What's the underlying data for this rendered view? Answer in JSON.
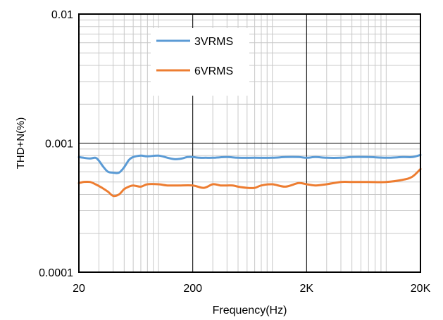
{
  "chart_data": {
    "type": "line",
    "title": "",
    "xlabel": "Frequency(Hz)",
    "ylabel": "THD+N(%)",
    "x_scale": "log",
    "y_scale": "log",
    "xlim": [
      20,
      20000
    ],
    "ylim": [
      0.0001,
      0.01
    ],
    "x_ticks": [
      {
        "value": 20,
        "label": "20"
      },
      {
        "value": 200,
        "label": "200"
      },
      {
        "value": 2000,
        "label": "2K"
      },
      {
        "value": 20000,
        "label": "20K"
      }
    ],
    "y_ticks": [
      {
        "value": 0.0001,
        "label": "0.0001"
      },
      {
        "value": 0.001,
        "label": "0.001"
      },
      {
        "value": 0.01,
        "label": "0.01"
      }
    ],
    "grid": true,
    "legend": "top-left inside plot",
    "series": [
      {
        "name": "3VRMS",
        "color": "#5b9bd5",
        "x": [
          20,
          22,
          25,
          28,
          30,
          33,
          36,
          40,
          45,
          50,
          55,
          60,
          70,
          80,
          100,
          120,
          140,
          160,
          180,
          200,
          230,
          260,
          300,
          400,
          500,
          700,
          1000,
          1300,
          1700,
          2000,
          2400,
          3000,
          4000,
          5000,
          7000,
          10000,
          14000,
          17000,
          20000
        ],
        "y": [
          0.00078,
          0.00077,
          0.00076,
          0.00077,
          0.00073,
          0.00065,
          0.0006,
          0.00059,
          0.00059,
          0.00065,
          0.00074,
          0.00078,
          0.0008,
          0.00079,
          0.0008,
          0.00077,
          0.00075,
          0.00076,
          0.00078,
          0.00078,
          0.00077,
          0.00077,
          0.00077,
          0.00078,
          0.00077,
          0.00077,
          0.00077,
          0.00078,
          0.00078,
          0.00077,
          0.00078,
          0.00077,
          0.00077,
          0.00078,
          0.00078,
          0.00077,
          0.00078,
          0.00078,
          0.00081
        ]
      },
      {
        "name": "6VRMS",
        "color": "#ed7d31",
        "x": [
          20,
          22,
          25,
          28,
          32,
          36,
          40,
          45,
          50,
          55,
          60,
          70,
          80,
          100,
          120,
          150,
          200,
          250,
          300,
          350,
          400,
          450,
          500,
          600,
          700,
          800,
          1000,
          1300,
          1700,
          2000,
          2400,
          3000,
          4000,
          5000,
          7000,
          10000,
          14000,
          17000,
          20000
        ],
        "y": [
          0.00049,
          0.0005,
          0.0005,
          0.00048,
          0.00045,
          0.00042,
          0.00039,
          0.0004,
          0.00044,
          0.00046,
          0.00047,
          0.00046,
          0.00048,
          0.00048,
          0.00047,
          0.00047,
          0.00047,
          0.00045,
          0.00048,
          0.00047,
          0.00047,
          0.00047,
          0.00046,
          0.00045,
          0.00045,
          0.00047,
          0.00048,
          0.00046,
          0.00049,
          0.00048,
          0.00047,
          0.00048,
          0.0005,
          0.0005,
          0.0005,
          0.0005,
          0.00052,
          0.00055,
          0.00063
        ]
      }
    ]
  }
}
